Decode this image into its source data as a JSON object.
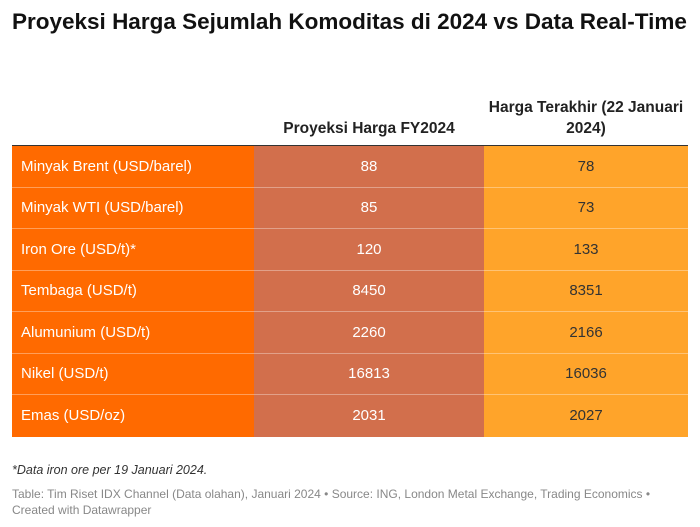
{
  "title": "Proyeksi Harga Sejumlah Komoditas di 2024 vs Data Real-Time",
  "table": {
    "headers": [
      "",
      "Proyeksi Harga FY2024",
      "Harga Terakhir (22 Januari 2024)"
    ],
    "rows": [
      {
        "commodity": "Minyak Brent (USD/barel)",
        "projection": "88",
        "latest": "78"
      },
      {
        "commodity": "Minyak WTI (USD/barel)",
        "projection": "85",
        "latest": "73"
      },
      {
        "commodity": "Iron Ore (USD/t)*",
        "projection": "120",
        "latest": "133"
      },
      {
        "commodity": "Tembaga (USD/t)",
        "projection": "8450",
        "latest": "8351"
      },
      {
        "commodity": "Alumunium (USD/t)",
        "projection": "2260",
        "latest": "2166"
      },
      {
        "commodity": "Nikel (USD/t)",
        "projection": "16813",
        "latest": "16036"
      },
      {
        "commodity": "Emas (USD/oz)",
        "projection": "2031",
        "latest": "2027"
      }
    ]
  },
  "chart_data": {
    "type": "table",
    "columns": [
      "",
      "Proyeksi Harga FY2024",
      "Harga Terakhir (22 Januari 2024)"
    ],
    "rows": [
      [
        "Minyak Brent (USD/barel)",
        88,
        78
      ],
      [
        "Minyak WTI (USD/barel)",
        85,
        73
      ],
      [
        "Iron Ore (USD/t)*",
        120,
        133
      ],
      [
        "Tembaga (USD/t)",
        8450,
        8351
      ],
      [
        "Alumunium (USD/t)",
        2260,
        2166
      ],
      [
        "Nikel (USD/t)",
        16813,
        16036
      ],
      [
        "Emas (USD/oz)",
        2031,
        2027
      ]
    ]
  },
  "colors": {
    "label_column": "#ff6a00",
    "projection_column": "#d26f4c",
    "latest_column": "#ffa42a"
  },
  "footnote": "*Data iron ore per 19 Januari 2024.",
  "source": "Table: Tim Riset IDX Channel (Data olahan), Januari 2024 • Source: ING, London Metal Exchange, Trading Economics • Created with Datawrapper"
}
